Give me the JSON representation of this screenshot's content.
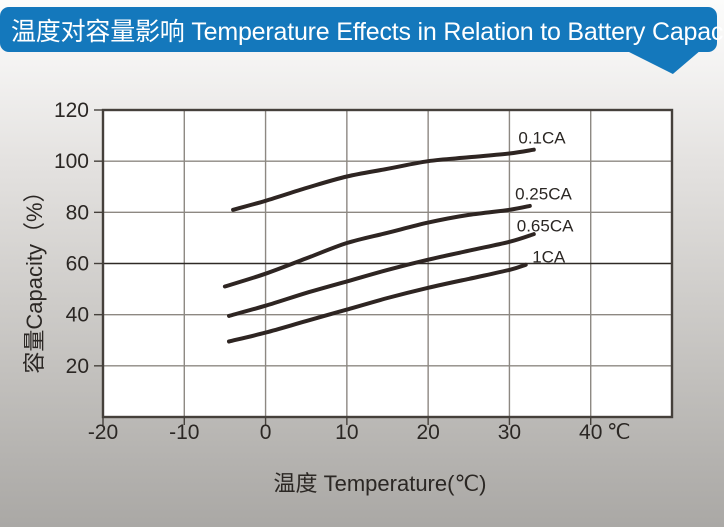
{
  "banner": {
    "title": "温度对容量影响 Temperature Effects in Relation to Battery Capacity",
    "bg_color": "#1478bc",
    "text_color": "#ffffff"
  },
  "chart_data": {
    "type": "line",
    "title": "",
    "xlabel": "温度  Temperature(℃)",
    "ylabel": "容量Capacity（%）",
    "x_unit_label": "℃",
    "xlim": [
      -20,
      50
    ],
    "ylim": [
      0,
      120
    ],
    "grid": true,
    "x_gridline_step": 10,
    "y_gridline_step": 20,
    "x_tick_labels": [
      -20,
      -10,
      0,
      10,
      20,
      30,
      40
    ],
    "y_tick_labels": [
      20,
      40,
      60,
      80,
      100,
      120
    ],
    "y_emphasized_gridline": 60,
    "legend_position": "inline-right",
    "series": [
      {
        "name": "0.1CA",
        "points": [
          [
            -4,
            81
          ],
          [
            0,
            84.5
          ],
          [
            5,
            89.5
          ],
          [
            10,
            94
          ],
          [
            15,
            97
          ],
          [
            20,
            100
          ],
          [
            25,
            101.5
          ],
          [
            30,
            103
          ],
          [
            33,
            104.5
          ]
        ],
        "label_pos": [
          31.1,
          107.0
        ]
      },
      {
        "name": "0.25CA",
        "points": [
          [
            -5,
            51
          ],
          [
            0,
            56
          ],
          [
            5,
            62
          ],
          [
            10,
            68
          ],
          [
            15,
            72
          ],
          [
            20,
            76
          ],
          [
            25,
            79
          ],
          [
            30,
            81
          ],
          [
            32.5,
            82.5
          ]
        ],
        "label_pos": [
          30.7,
          85.0
        ]
      },
      {
        "name": "0.65CA",
        "points": [
          [
            -4.5,
            39.5
          ],
          [
            0,
            43.5
          ],
          [
            5,
            48.5
          ],
          [
            10,
            53
          ],
          [
            15,
            57.5
          ],
          [
            20,
            61.5
          ],
          [
            25,
            65
          ],
          [
            30,
            68.5
          ],
          [
            33,
            71.5
          ]
        ],
        "label_pos": [
          30.9,
          72.5
        ]
      },
      {
        "name": "1CA",
        "points": [
          [
            -4.5,
            29.5
          ],
          [
            0,
            33
          ],
          [
            5,
            37.5
          ],
          [
            10,
            42
          ],
          [
            15,
            46.5
          ],
          [
            20,
            50.5
          ],
          [
            25,
            54
          ],
          [
            30,
            57.5
          ],
          [
            32,
            59.5
          ]
        ],
        "label_pos": [
          32.8,
          60.4
        ]
      }
    ],
    "colors": {
      "curve": "#2e2522",
      "grid": "#8d8882",
      "border": "#45403b",
      "emphasized_gridline": "#2f2a26",
      "text": "#2b2724",
      "plot_bg": "#ffffff"
    }
  }
}
